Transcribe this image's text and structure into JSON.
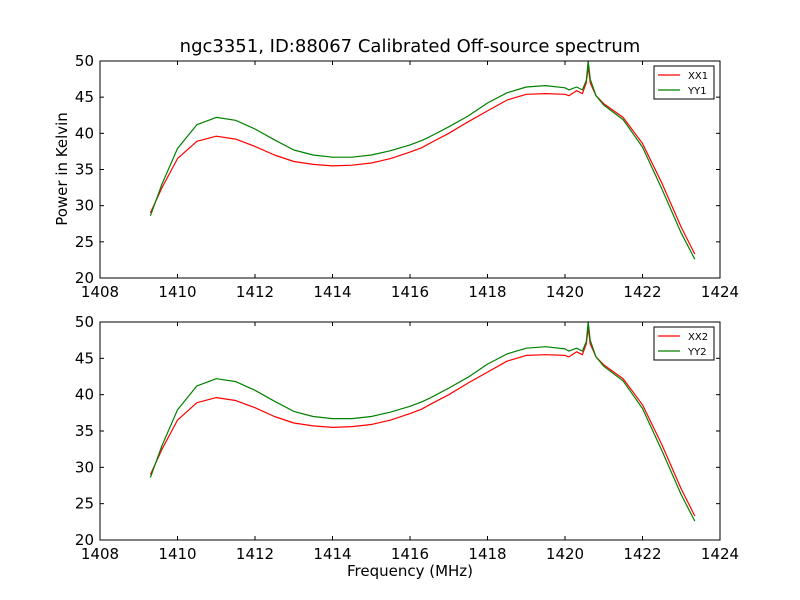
{
  "chart_data": {
    "title": "ngc3351, ID:88067 Calibrated Off-source spectrum",
    "xlabel": "Frequency (MHz)",
    "ylabel": "Power in Kelvin",
    "colors": {
      "XX": "#ff0000",
      "YY": "#008000"
    },
    "legend_position": "top-right",
    "panels": [
      {
        "type": "line",
        "xlim": [
          1408,
          1424
        ],
        "ylim": [
          20,
          50
        ],
        "x_ticks": [
          "1408",
          "1410",
          "1412",
          "1414",
          "1416",
          "1418",
          "1420",
          "1422",
          "1424"
        ],
        "y_ticks": [
          "20",
          "25",
          "30",
          "35",
          "40",
          "45",
          "50"
        ],
        "series": [
          {
            "name": "XX1",
            "color": "#ff0000",
            "x": [
              1409.3,
              1409.6,
              1410.0,
              1410.5,
              1411.0,
              1411.5,
              1412.0,
              1412.5,
              1413.0,
              1413.5,
              1414.0,
              1414.5,
              1415.0,
              1415.5,
              1416.0,
              1416.3,
              1416.5,
              1417.0,
              1417.5,
              1418.0,
              1418.5,
              1419.0,
              1419.5,
              1420.0,
              1420.1,
              1420.3,
              1420.45,
              1420.55,
              1420.6,
              1420.65,
              1420.8,
              1421.0,
              1421.5,
              1422.0,
              1422.5,
              1423.0,
              1423.35
            ],
            "y": [
              29.0,
              32.5,
              36.5,
              38.9,
              39.6,
              39.2,
              38.2,
              37.0,
              36.1,
              35.7,
              35.5,
              35.6,
              35.9,
              36.5,
              37.4,
              38.0,
              38.6,
              40.0,
              41.6,
              43.1,
              44.6,
              45.4,
              45.5,
              45.4,
              45.2,
              45.9,
              45.5,
              47.0,
              49.2,
              47.0,
              45.2,
              44.1,
              42.2,
              38.6,
              33.1,
              27.0,
              23.3
            ]
          },
          {
            "name": "YY1",
            "color": "#008000",
            "x": [
              1409.3,
              1409.6,
              1410.0,
              1410.5,
              1411.0,
              1411.5,
              1412.0,
              1412.5,
              1413.0,
              1413.5,
              1414.0,
              1414.5,
              1415.0,
              1415.5,
              1416.0,
              1416.3,
              1416.5,
              1417.0,
              1417.5,
              1418.0,
              1418.5,
              1419.0,
              1419.5,
              1420.0,
              1420.1,
              1420.3,
              1420.45,
              1420.55,
              1420.6,
              1420.65,
              1420.8,
              1421.0,
              1421.5,
              1422.0,
              1422.5,
              1423.0,
              1423.35
            ],
            "y": [
              28.6,
              33.0,
              37.9,
              41.2,
              42.2,
              41.8,
              40.6,
              39.1,
              37.7,
              37.0,
              36.7,
              36.7,
              37.0,
              37.6,
              38.4,
              39.0,
              39.5,
              40.9,
              42.4,
              44.2,
              45.6,
              46.4,
              46.6,
              46.3,
              46.0,
              46.4,
              46.0,
              47.3,
              50.0,
              47.5,
              45.2,
              43.9,
              41.9,
              38.1,
              32.3,
              26.2,
              22.6
            ]
          }
        ]
      },
      {
        "type": "line",
        "xlim": [
          1408,
          1424
        ],
        "ylim": [
          20,
          50
        ],
        "x_ticks": [
          "1408",
          "1410",
          "1412",
          "1414",
          "1416",
          "1418",
          "1420",
          "1422",
          "1424"
        ],
        "y_ticks": [
          "20",
          "25",
          "30",
          "35",
          "40",
          "45",
          "50"
        ],
        "series": [
          {
            "name": "XX2",
            "color": "#ff0000",
            "x": [
              1409.3,
              1409.6,
              1410.0,
              1410.5,
              1411.0,
              1411.5,
              1412.0,
              1412.5,
              1413.0,
              1413.5,
              1414.0,
              1414.5,
              1415.0,
              1415.5,
              1416.0,
              1416.3,
              1416.5,
              1417.0,
              1417.5,
              1418.0,
              1418.5,
              1419.0,
              1419.5,
              1420.0,
              1420.1,
              1420.3,
              1420.45,
              1420.55,
              1420.6,
              1420.65,
              1420.8,
              1421.0,
              1421.5,
              1422.0,
              1422.5,
              1423.0,
              1423.35
            ],
            "y": [
              29.0,
              32.5,
              36.5,
              38.9,
              39.6,
              39.2,
              38.2,
              37.0,
              36.1,
              35.7,
              35.5,
              35.6,
              35.9,
              36.5,
              37.4,
              38.0,
              38.6,
              40.0,
              41.6,
              43.1,
              44.6,
              45.4,
              45.5,
              45.4,
              45.2,
              45.9,
              45.5,
              47.0,
              49.2,
              47.0,
              45.2,
              44.1,
              42.2,
              38.6,
              33.1,
              27.0,
              23.3
            ]
          },
          {
            "name": "YY2",
            "color": "#008000",
            "x": [
              1409.3,
              1409.6,
              1410.0,
              1410.5,
              1411.0,
              1411.5,
              1412.0,
              1412.5,
              1413.0,
              1413.5,
              1414.0,
              1414.5,
              1415.0,
              1415.5,
              1416.0,
              1416.3,
              1416.5,
              1417.0,
              1417.5,
              1418.0,
              1418.5,
              1419.0,
              1419.5,
              1420.0,
              1420.1,
              1420.3,
              1420.45,
              1420.55,
              1420.6,
              1420.65,
              1420.8,
              1421.0,
              1421.5,
              1422.0,
              1422.5,
              1423.0,
              1423.35
            ],
            "y": [
              28.6,
              33.0,
              37.9,
              41.2,
              42.2,
              41.8,
              40.6,
              39.1,
              37.7,
              37.0,
              36.7,
              36.7,
              37.0,
              37.6,
              38.4,
              39.0,
              39.5,
              40.9,
              42.4,
              44.2,
              45.6,
              46.4,
              46.6,
              46.3,
              46.0,
              46.4,
              46.0,
              47.3,
              50.0,
              47.5,
              45.2,
              43.9,
              41.9,
              38.1,
              32.3,
              26.2,
              22.6
            ]
          }
        ]
      }
    ]
  }
}
